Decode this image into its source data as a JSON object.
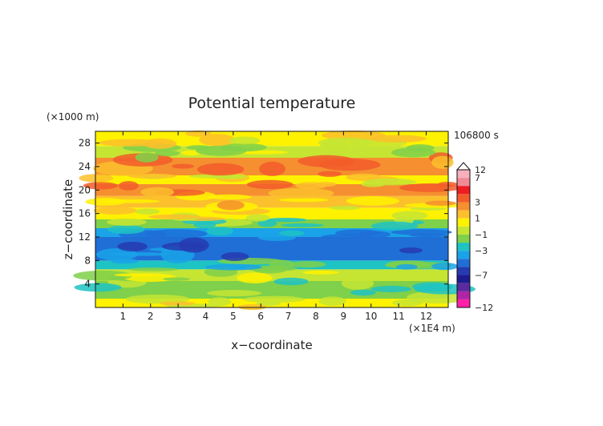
{
  "chart_data": {
    "type": "heatmap",
    "title": "Potential temperature",
    "xlabel": "x−coordinate",
    "ylabel": "z−coordinate",
    "x_unit": "(×1E4 m)",
    "y_unit": "(×1000 m)",
    "time_label": "106800 s",
    "xlim": [
      0,
      12.8
    ],
    "ylim": [
      0,
      30
    ],
    "x_ticks": [
      "1",
      "2",
      "3",
      "4",
      "5",
      "6",
      "7",
      "8",
      "9",
      "10",
      "11",
      "12"
    ],
    "y_ticks": [
      "4",
      "8",
      "12",
      "16",
      "20",
      "24",
      "28"
    ],
    "colorbar": {
      "labels": [
        "12",
        "7",
        "3",
        "1",
        "−1",
        "−3",
        "−7",
        "−12"
      ],
      "bins": [
        {
          "from": 7,
          "to": 12,
          "color": "#f7b0bd"
        },
        {
          "from": 5,
          "to": 7,
          "color": "#f08a95"
        },
        {
          "from": 4,
          "to": 5,
          "color": "#ee1c23"
        },
        {
          "from": 3,
          "to": 4,
          "color": "#f25c2a"
        },
        {
          "from": 2,
          "to": 3,
          "color": "#f58f2f"
        },
        {
          "from": 1,
          "to": 2,
          "color": "#fbc02c"
        },
        {
          "from": 0,
          "to": 1,
          "color": "#fff200"
        },
        {
          "from": -1,
          "to": 0,
          "color": "#c6e533"
        },
        {
          "from": -2,
          "to": -1,
          "color": "#7fd04a"
        },
        {
          "from": -3,
          "to": -2,
          "color": "#1ec3c3"
        },
        {
          "from": -4,
          "to": -3,
          "color": "#1aa3e8"
        },
        {
          "from": -5,
          "to": -4,
          "color": "#1f6fd6"
        },
        {
          "from": -7,
          "to": -5,
          "color": "#263bb0"
        },
        {
          "from": -9,
          "to": -7,
          "color": "#1c1c8f"
        },
        {
          "from": -10,
          "to": -9,
          "color": "#5b2a9e"
        },
        {
          "from": -11,
          "to": -10,
          "color": "#b025a6"
        },
        {
          "from": -12,
          "to": -11,
          "color": "#ff1fa8"
        }
      ]
    },
    "layers": [
      {
        "z_from": 0,
        "z_to": 1.5,
        "anomaly": 0.5
      },
      {
        "z_from": 1.5,
        "z_to": 4.5,
        "anomaly": -1.5
      },
      {
        "z_from": 4.5,
        "z_to": 6.5,
        "anomaly": -0.5
      },
      {
        "z_from": 6.5,
        "z_to": 8.0,
        "anomaly": -2.5
      },
      {
        "z_from": 8.0,
        "z_to": 12.0,
        "anomaly": -4.5
      },
      {
        "z_from": 12.0,
        "z_to": 13.5,
        "anomaly": -3.5
      },
      {
        "z_from": 13.5,
        "z_to": 15.0,
        "anomaly": -1.5
      },
      {
        "z_from": 15.0,
        "z_to": 17.0,
        "anomaly": 0.5
      },
      {
        "z_from": 17.0,
        "z_to": 19.0,
        "anomaly": 1.5
      },
      {
        "z_from": 19.0,
        "z_to": 21.0,
        "anomaly": 2.5
      },
      {
        "z_from": 21.0,
        "z_to": 22.5,
        "anomaly": 0.5
      },
      {
        "z_from": 22.5,
        "z_to": 25.5,
        "anomaly": 2.5
      },
      {
        "z_from": 25.5,
        "z_to": 27.5,
        "anomaly": -0.5
      },
      {
        "z_from": 27.5,
        "z_to": 30.0,
        "anomaly": 0.5
      }
    ],
    "grid": false
  }
}
